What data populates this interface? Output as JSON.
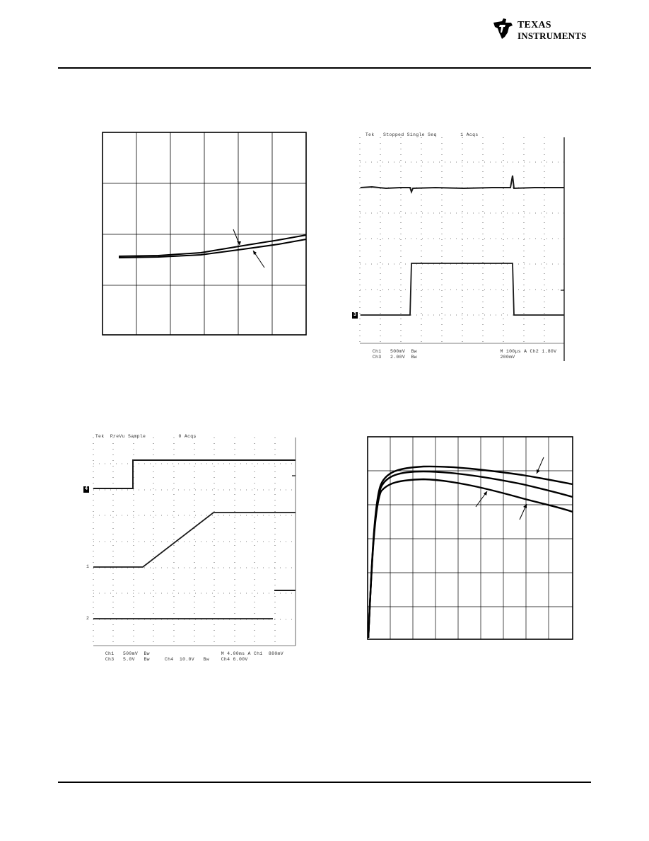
{
  "logo": {
    "line1": "TEXAS",
    "line2": "INSTRUMENTS"
  },
  "scope1": {
    "header": [
      "Tek",
      "Stopped",
      "Single Seq",
      "1 Acqs"
    ],
    "footer_row1": [
      "Ch1",
      "500mV",
      "Bw",
      "M 100μs",
      "A",
      "Ch2",
      "1.80V"
    ],
    "footer_row2": [
      "Ch3",
      "2.00V",
      "Bw",
      "200mV"
    ],
    "channel_marker": "3"
  },
  "scope2": {
    "header": [
      "Tek",
      "PreVu",
      "Sample",
      "0 Acqs"
    ],
    "footer_row1": [
      "Ch1",
      "500mV",
      "Bw",
      "M 4.00ms",
      "A",
      "Ch1",
      "880mV"
    ],
    "footer_row2": [
      "Ch3",
      "5.0V",
      "Bw",
      "Ch4",
      "10.0V",
      "Bw",
      "Ch4",
      "6.00V"
    ],
    "channel_marker": "4",
    "level_labels": [
      "1",
      "2"
    ]
  },
  "colors": {
    "ink": "#000000",
    "grid": "#000000",
    "trace": "#1a1a1a"
  }
}
